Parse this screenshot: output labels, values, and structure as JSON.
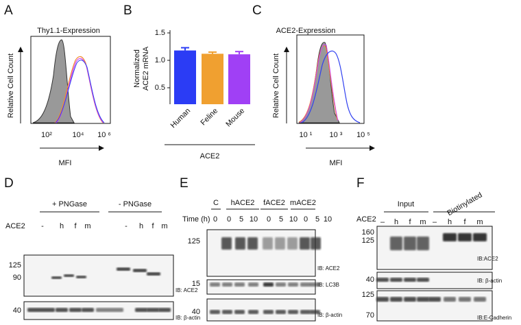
{
  "panel_a": {
    "letter": "A",
    "title": "Thy1.1-Expression",
    "ylabel": "Relative Cell Count",
    "xlabel": "MFI",
    "xticks": [
      "10²",
      "10⁴",
      "10 ⁶"
    ]
  },
  "chart_data": {
    "type": "bar",
    "letter": "B",
    "ylabel": [
      "Normalized",
      "ACE2 mRNA"
    ],
    "xlabel": "ACE2",
    "categories": [
      "Human",
      "Feline",
      "Mouse"
    ],
    "values": [
      1.18,
      1.12,
      1.11
    ],
    "errors": [
      0.05,
      0.03,
      0.05
    ],
    "colors": [
      "#2b3cf5",
      "#f0a030",
      "#a040f5"
    ],
    "ylim": [
      0.2,
      1.5
    ],
    "yticks": [
      0.5,
      {
        "value": 1,
        "label": "1.0"
      },
      1.5
    ]
  },
  "panel_c": {
    "letter": "C",
    "title": "ACE2-Expression",
    "ylabel": "Relative Cell Count",
    "xlabel": "MFI",
    "xticks": [
      "10 ¹",
      "10 ³",
      "10 ⁵"
    ]
  },
  "panel_d": {
    "letter": "D",
    "groups": [
      "+ PNGase",
      "- PNGase"
    ],
    "row_label": "ACE2",
    "lanes": [
      "-",
      "h",
      "f",
      "m",
      "-",
      "h",
      "f",
      "m"
    ],
    "blots": [
      {
        "markers": [
          "125",
          "90"
        ],
        "label": "IB: ACE2"
      },
      {
        "markers": [
          "40"
        ],
        "label": "IB: β-actin"
      }
    ]
  },
  "panel_e": {
    "letter": "E",
    "groups": [
      "C",
      "hACE2",
      "fACE2",
      "mACE2"
    ],
    "row_label": "Time (h)",
    "lanes": [
      "0",
      "0",
      "5",
      "10",
      "0",
      "5",
      "10",
      "0",
      "5",
      "10"
    ],
    "blots": [
      {
        "markers": [
          "125"
        ],
        "label": "IB: ACE2"
      },
      {
        "markers": [
          "15"
        ],
        "label": "IB: LC3B"
      },
      {
        "markers": [
          "40"
        ],
        "label": "IB: β-actin"
      }
    ]
  },
  "panel_f": {
    "letter": "F",
    "groups": [
      "Input",
      "Biotinylated"
    ],
    "row_label": "ACE2",
    "lanes": [
      "–",
      "h",
      "f",
      "m",
      "–",
      "h",
      "f",
      "m"
    ],
    "blots": [
      {
        "markers": [
          "160",
          "125"
        ],
        "label": "IB:ACE2"
      },
      {
        "markers": [
          "40"
        ],
        "label": "IB: β-actin"
      },
      {
        "markers": [
          "125",
          "70"
        ],
        "label": "IB:E-Cadherin"
      }
    ]
  }
}
